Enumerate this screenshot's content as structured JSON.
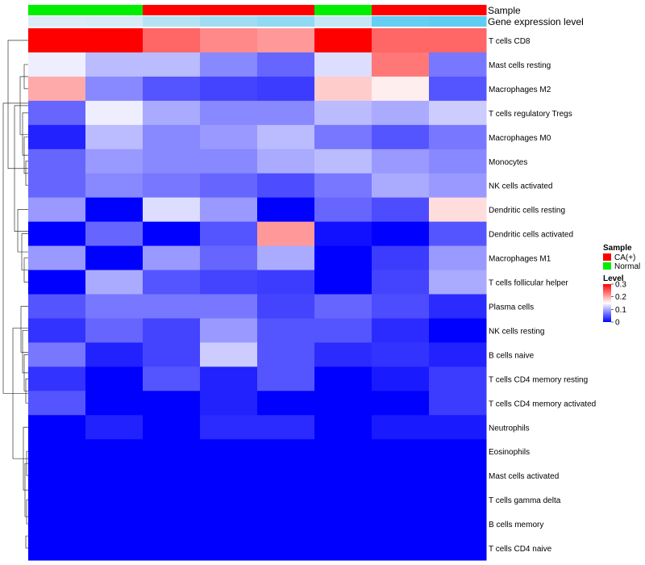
{
  "chart_data": {
    "type": "heatmap",
    "annotation_tracks": [
      {
        "name": "Sample",
        "values": [
          "Normal",
          "Normal",
          "CA(+)",
          "CA(+)",
          "CA(+)",
          "Normal",
          "CA(+)",
          "CA(+)"
        ]
      },
      {
        "name": "Gene expression level",
        "values": [
          0.05,
          0.08,
          0.3,
          0.45,
          0.55,
          0.2,
          0.85,
          0.9
        ]
      }
    ],
    "rows": [
      "T cells CD8",
      "Mast cells resting",
      "Macrophages M2",
      "T cells regulatory  Tregs",
      "Macrophages M0",
      "Monocytes",
      "NK cells activated",
      "Dendritic cells resting",
      "Dendritic cells activated",
      "Macrophages M1",
      "T cells follicular helper",
      "Plasma cells",
      "NK cells resting",
      "B cells naive",
      "T cells CD4 memory resting",
      "T cells CD4 memory activated",
      "Neutrophils",
      "Eosinophils",
      "Mast cells activated",
      "T cells gamma delta",
      "B cells memory",
      "T cells CD4 naive"
    ],
    "n_columns": 8,
    "values": [
      [
        0.3,
        0.31,
        0.24,
        0.22,
        0.21,
        0.31,
        0.24,
        0.24
      ],
      [
        0.14,
        0.11,
        0.11,
        0.08,
        0.06,
        0.13,
        0.23,
        0.07
      ],
      [
        0.2,
        0.08,
        0.05,
        0.04,
        0.035,
        0.18,
        0.16,
        0.05
      ],
      [
        0.06,
        0.14,
        0.1,
        0.08,
        0.08,
        0.11,
        0.1,
        0.12
      ],
      [
        0.02,
        0.11,
        0.08,
        0.09,
        0.11,
        0.07,
        0.05,
        0.07
      ],
      [
        0.06,
        0.09,
        0.08,
        0.08,
        0.1,
        0.11,
        0.09,
        0.08
      ],
      [
        0.06,
        0.08,
        0.07,
        0.06,
        0.045,
        0.07,
        0.1,
        0.09
      ],
      [
        0.09,
        0.0,
        0.13,
        0.09,
        0.0,
        0.06,
        0.045,
        0.17
      ],
      [
        0.0,
        0.06,
        0.0,
        0.05,
        0.21,
        0.01,
        0.0,
        0.05
      ],
      [
        0.09,
        0.0,
        0.09,
        0.06,
        0.1,
        0.0,
        0.035,
        0.09
      ],
      [
        0.0,
        0.1,
        0.05,
        0.04,
        0.035,
        0.0,
        0.04,
        0.1
      ],
      [
        0.05,
        0.07,
        0.07,
        0.07,
        0.04,
        0.06,
        0.045,
        0.025
      ],
      [
        0.03,
        0.06,
        0.04,
        0.09,
        0.05,
        0.05,
        0.025,
        0.0
      ],
      [
        0.07,
        0.02,
        0.04,
        0.12,
        0.05,
        0.025,
        0.03,
        0.02
      ],
      [
        0.03,
        0.0,
        0.05,
        0.02,
        0.05,
        0.0,
        0.015,
        0.035
      ],
      [
        0.05,
        0.0,
        0.0,
        0.02,
        0.0,
        0.0,
        0.0,
        0.035
      ],
      [
        0.0,
        0.02,
        0.0,
        0.025,
        0.025,
        0.0,
        0.015,
        0.015
      ],
      [
        0.0,
        0.0,
        0.0,
        0.0,
        0.0,
        0.0,
        0.0,
        0.0
      ],
      [
        0.0,
        0.0,
        0.0,
        0.0,
        0.0,
        0.0,
        0.0,
        0.0
      ],
      [
        0.0,
        0.0,
        0.0,
        0.0,
        0.0,
        0.0,
        0.0,
        0.0
      ],
      [
        0.0,
        0.0,
        0.0,
        0.0,
        0.0,
        0.0,
        0.0,
        0.0
      ],
      [
        0.0,
        0.0,
        0.0,
        0.0,
        0.0,
        0.0,
        0.0,
        0.0
      ]
    ],
    "color_scale": {
      "low": "#0000ff",
      "mid": "#ffffff",
      "high": "#ff0000",
      "range": [
        0,
        0.3
      ],
      "midpoint": 0.15
    },
    "legends": {
      "sample": {
        "title": "Sample",
        "entries": [
          {
            "label": "CA(+)",
            "color": "#ff0000"
          },
          {
            "label": "Normal",
            "color": "#00ee00"
          }
        ]
      },
      "level": {
        "title": "Level",
        "ticks": [
          "0.3",
          "0.2",
          "0.1",
          "0"
        ],
        "tick_values": [
          0.3,
          0.2,
          0.1,
          0
        ]
      }
    },
    "dendrogram": "row clustering tree on left"
  }
}
